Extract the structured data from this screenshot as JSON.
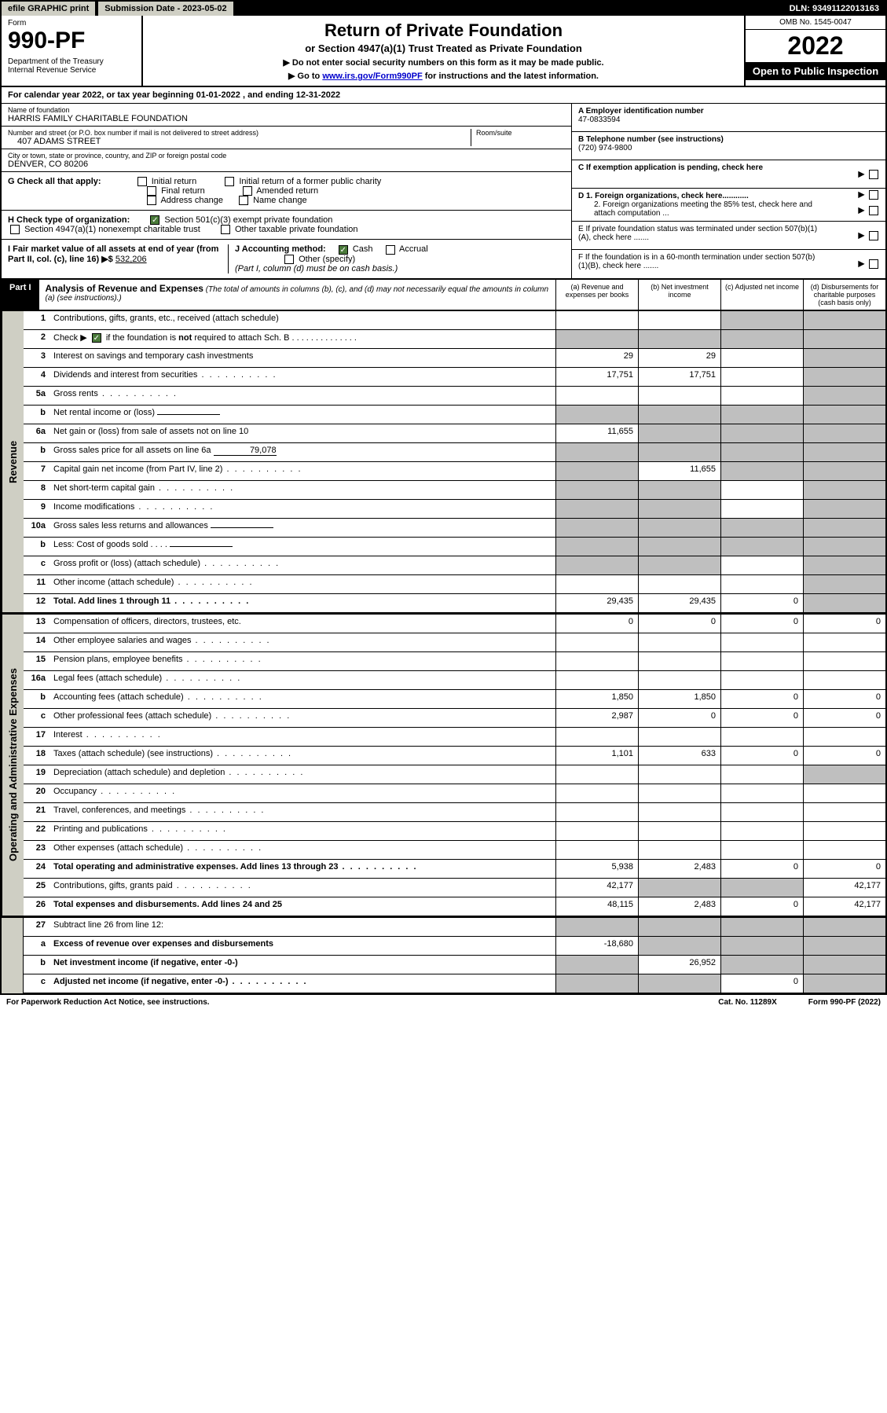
{
  "topbar": {
    "efile": "efile GRAPHIC print",
    "submission": "Submission Date - 2023-05-02",
    "dln": "DLN: 93491122013163"
  },
  "header": {
    "form_label": "Form",
    "form_no": "990-PF",
    "dept": "Department of the Treasury\nInternal Revenue Service",
    "title": "Return of Private Foundation",
    "subtitle": "or Section 4947(a)(1) Trust Treated as Private Foundation",
    "instr1": "▶ Do not enter social security numbers on this form as it may be made public.",
    "instr2_pre": "▶ Go to ",
    "instr2_link": "www.irs.gov/Form990PF",
    "instr2_post": " for instructions and the latest information.",
    "omb": "OMB No. 1545-0047",
    "year": "2022",
    "open": "Open to Public Inspection"
  },
  "calyear": "For calendar year 2022, or tax year beginning 01-01-2022            , and ending 12-31-2022",
  "info": {
    "name_label": "Name of foundation",
    "name": "HARRIS FAMILY CHARITABLE FOUNDATION",
    "addr_label": "Number and street (or P.O. box number if mail is not delivered to street address)",
    "addr": "407 ADAMS STREET",
    "room_label": "Room/suite",
    "city_label": "City or town, state or province, country, and ZIP or foreign postal code",
    "city": "DENVER, CO  80206",
    "ein_label": "A Employer identification number",
    "ein": "47-0833594",
    "phone_label": "B Telephone number (see instructions)",
    "phone": "(720) 974-9800",
    "c_label": "C If exemption application is pending, check here",
    "d1": "D 1. Foreign organizations, check here............",
    "d2": "2. Foreign organizations meeting the 85% test, check here and attach computation ...",
    "e_label": "E  If private foundation status was terminated under section 507(b)(1)(A), check here .......",
    "f_label": "F  If the foundation is in a 60-month termination under section 507(b)(1)(B), check here .......",
    "g_label": "G Check all that apply:",
    "g_opts": [
      "Initial return",
      "Initial return of a former public charity",
      "Final return",
      "Amended return",
      "Address change",
      "Name change"
    ],
    "h_label": "H Check type of organization:",
    "h_opts": [
      "Section 501(c)(3) exempt private foundation",
      "Section 4947(a)(1) nonexempt charitable trust",
      "Other taxable private foundation"
    ],
    "i_label": "I Fair market value of all assets at end of year (from Part II, col. (c), line 16) ▶$",
    "i_value": "532,206",
    "j_label": "J Accounting method:",
    "j_cash": "Cash",
    "j_accrual": "Accrual",
    "j_other": "Other (specify)",
    "j_note": "(Part I, column (d) must be on cash basis.)"
  },
  "part1": {
    "label": "Part I",
    "title": "Analysis of Revenue and Expenses",
    "note": "(The total of amounts in columns (b), (c), and (d) may not necessarily equal the amounts in column (a) (see instructions).)",
    "cols": [
      "(a)   Revenue and expenses per books",
      "(b)   Net investment income",
      "(c)   Adjusted net income",
      "(d)  Disbursements for charitable purposes (cash basis only)"
    ]
  },
  "sides": {
    "revenue": "Revenue",
    "expenses": "Operating and Administrative Expenses"
  },
  "rows": [
    {
      "n": "1",
      "d": "Contributions, gifts, grants, etc., received (attach schedule)",
      "a": "",
      "b": "",
      "c": "s",
      "dd": "s"
    },
    {
      "n": "2",
      "d": "Check ▶ ▢ if the foundation is not required to attach Sch. B",
      "a": "s",
      "b": "s",
      "c": "s",
      "dd": "s",
      "check": true
    },
    {
      "n": "3",
      "d": "Interest on savings and temporary cash investments",
      "a": "29",
      "b": "29",
      "c": "",
      "dd": "s"
    },
    {
      "n": "4",
      "d": "Dividends and interest from securities",
      "a": "17,751",
      "b": "17,751",
      "c": "",
      "dd": "s",
      "dots": true
    },
    {
      "n": "5a",
      "d": "Gross rents",
      "a": "",
      "b": "",
      "c": "",
      "dd": "s",
      "dots": true
    },
    {
      "n": "b",
      "d": "Net rental income or (loss)",
      "a": "s",
      "b": "s",
      "c": "s",
      "dd": "s",
      "inline": true
    },
    {
      "n": "6a",
      "d": "Net gain or (loss) from sale of assets not on line 10",
      "a": "11,655",
      "b": "s",
      "c": "s",
      "dd": "s"
    },
    {
      "n": "b",
      "d": "Gross sales price for all assets on line 6a",
      "a": "s",
      "b": "s",
      "c": "s",
      "dd": "s",
      "inline": true,
      "inlineval": "79,078"
    },
    {
      "n": "7",
      "d": "Capital gain net income (from Part IV, line 2)",
      "a": "s",
      "b": "11,655",
      "c": "s",
      "dd": "s",
      "dots": true
    },
    {
      "n": "8",
      "d": "Net short-term capital gain",
      "a": "s",
      "b": "s",
      "c": "",
      "dd": "s",
      "dots": true
    },
    {
      "n": "9",
      "d": "Income modifications",
      "a": "s",
      "b": "s",
      "c": "",
      "dd": "s",
      "dots": true
    },
    {
      "n": "10a",
      "d": "Gross sales less returns and allowances",
      "a": "s",
      "b": "s",
      "c": "s",
      "dd": "s",
      "inline": true
    },
    {
      "n": "b",
      "d": "Less: Cost of goods sold",
      "a": "s",
      "b": "s",
      "c": "s",
      "dd": "s",
      "inline": true,
      "dots": true
    },
    {
      "n": "c",
      "d": "Gross profit or (loss) (attach schedule)",
      "a": "s",
      "b": "s",
      "c": "",
      "dd": "s",
      "dots": true
    },
    {
      "n": "11",
      "d": "Other income (attach schedule)",
      "a": "",
      "b": "",
      "c": "",
      "dd": "s",
      "dots": true
    },
    {
      "n": "12",
      "d": "Total. Add lines 1 through 11",
      "a": "29,435",
      "b": "29,435",
      "c": "0",
      "dd": "s",
      "bold": true,
      "dots": true
    }
  ],
  "exp_rows": [
    {
      "n": "13",
      "d": "Compensation of officers, directors, trustees, etc.",
      "a": "0",
      "b": "0",
      "c": "0",
      "dd": "0"
    },
    {
      "n": "14",
      "d": "Other employee salaries and wages",
      "a": "",
      "b": "",
      "c": "",
      "dd": "",
      "dots": true
    },
    {
      "n": "15",
      "d": "Pension plans, employee benefits",
      "a": "",
      "b": "",
      "c": "",
      "dd": "",
      "dots": true
    },
    {
      "n": "16a",
      "d": "Legal fees (attach schedule)",
      "a": "",
      "b": "",
      "c": "",
      "dd": "",
      "dots": true
    },
    {
      "n": "b",
      "d": "Accounting fees (attach schedule)",
      "a": "1,850",
      "b": "1,850",
      "c": "0",
      "dd": "0",
      "dots": true
    },
    {
      "n": "c",
      "d": "Other professional fees (attach schedule)",
      "a": "2,987",
      "b": "0",
      "c": "0",
      "dd": "0",
      "dots": true
    },
    {
      "n": "17",
      "d": "Interest",
      "a": "",
      "b": "",
      "c": "",
      "dd": "",
      "dots": true
    },
    {
      "n": "18",
      "d": "Taxes (attach schedule) (see instructions)",
      "a": "1,101",
      "b": "633",
      "c": "0",
      "dd": "0",
      "dots": true
    },
    {
      "n": "19",
      "d": "Depreciation (attach schedule) and depletion",
      "a": "",
      "b": "",
      "c": "",
      "dd": "s",
      "dots": true
    },
    {
      "n": "20",
      "d": "Occupancy",
      "a": "",
      "b": "",
      "c": "",
      "dd": "",
      "dots": true
    },
    {
      "n": "21",
      "d": "Travel, conferences, and meetings",
      "a": "",
      "b": "",
      "c": "",
      "dd": "",
      "dots": true
    },
    {
      "n": "22",
      "d": "Printing and publications",
      "a": "",
      "b": "",
      "c": "",
      "dd": "",
      "dots": true
    },
    {
      "n": "23",
      "d": "Other expenses (attach schedule)",
      "a": "",
      "b": "",
      "c": "",
      "dd": "",
      "dots": true
    },
    {
      "n": "24",
      "d": "Total operating and administrative expenses. Add lines 13 through 23",
      "a": "5,938",
      "b": "2,483",
      "c": "0",
      "dd": "0",
      "bold": true,
      "dots": true
    },
    {
      "n": "25",
      "d": "Contributions, gifts, grants paid",
      "a": "42,177",
      "b": "s",
      "c": "s",
      "dd": "42,177",
      "dots": true
    },
    {
      "n": "26",
      "d": "Total expenses and disbursements. Add lines 24 and 25",
      "a": "48,115",
      "b": "2,483",
      "c": "0",
      "dd": "42,177",
      "bold": true
    }
  ],
  "bottom_rows": [
    {
      "n": "27",
      "d": "Subtract line 26 from line 12:",
      "a": "s",
      "b": "s",
      "c": "s",
      "dd": "s"
    },
    {
      "n": "a",
      "d": "Excess of revenue over expenses and disbursements",
      "a": "-18,680",
      "b": "s",
      "c": "s",
      "dd": "s",
      "bold": true
    },
    {
      "n": "b",
      "d": "Net investment income (if negative, enter -0-)",
      "a": "s",
      "b": "26,952",
      "c": "s",
      "dd": "s",
      "bold": true
    },
    {
      "n": "c",
      "d": "Adjusted net income (if negative, enter -0-)",
      "a": "s",
      "b": "s",
      "c": "0",
      "dd": "s",
      "bold": true,
      "dots": true
    }
  ],
  "footer": {
    "left": "For Paperwork Reduction Act Notice, see instructions.",
    "mid": "Cat. No. 11289X",
    "right": "Form 990-PF (2022)"
  }
}
